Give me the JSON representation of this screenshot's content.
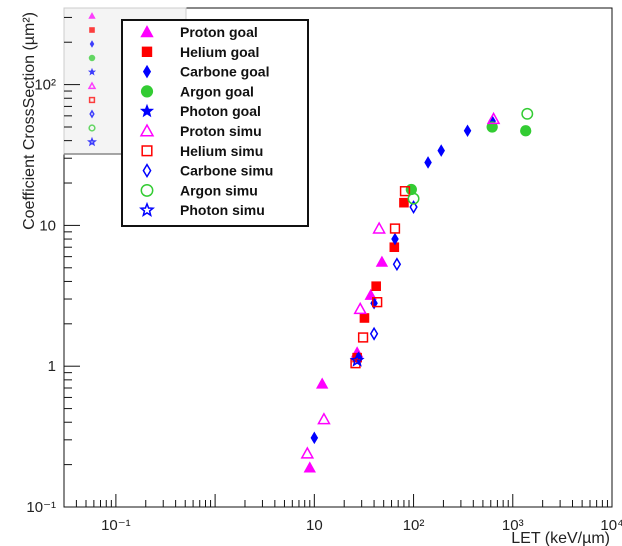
{
  "chart_data": {
    "type": "scatter",
    "title": "",
    "xlabel": "LET (keV/µm)",
    "ylabel": "Coefficient CrossSection (µm²)",
    "xscale": "log",
    "yscale": "log",
    "xlim": [
      0.03,
      10000
    ],
    "ylim": [
      0.1,
      350
    ],
    "grid": false,
    "legend_position": "top-left",
    "x_ticks": [
      {
        "value": 0.1,
        "label": "10⁻¹"
      },
      {
        "value": 10,
        "label": "10"
      },
      {
        "value": 100,
        "label": "10²"
      },
      {
        "value": 1000,
        "label": "10³"
      },
      {
        "value": 10000,
        "label": "10⁴"
      }
    ],
    "y_ticks": [
      {
        "value": 0.1,
        "label": "10⁻¹"
      },
      {
        "value": 1,
        "label": "1"
      },
      {
        "value": 10,
        "label": "10"
      },
      {
        "value": 100,
        "label": "10²"
      }
    ],
    "series": [
      {
        "name": "Proton goal",
        "marker": "triangle",
        "filled": true,
        "color": "#ff00ff",
        "x": [
          9.0,
          12.0,
          27.0,
          37.0,
          48.0
        ],
        "y": [
          0.19,
          0.75,
          1.25,
          3.2,
          5.5
        ]
      },
      {
        "name": "Helium goal",
        "marker": "square",
        "filled": true,
        "color": "#ff0000",
        "x": [
          27.0,
          32.0,
          42.0,
          64.0,
          80.0
        ],
        "y": [
          1.15,
          2.2,
          3.7,
          7.0,
          14.5
        ]
      },
      {
        "name": "Carbone goal",
        "marker": "diamond",
        "filled": true,
        "color": "#0000ff",
        "x": [
          10.0,
          28.0,
          40.0,
          65.0,
          140.0,
          190.0,
          350.0,
          620.0
        ],
        "y": [
          0.31,
          1.15,
          2.8,
          8.0,
          28.0,
          34.0,
          47.0,
          55.0
        ]
      },
      {
        "name": "Argon goal",
        "marker": "circle",
        "filled": true,
        "color": "#33cc33",
        "x": [
          95.0,
          620.0,
          1350.0
        ],
        "y": [
          18.0,
          50.0,
          47.0
        ]
      },
      {
        "name": "Photon goal",
        "marker": "star",
        "filled": true,
        "color": "#0000ff",
        "x": [],
        "y": []
      },
      {
        "name": "Proton simu",
        "marker": "triangle",
        "filled": false,
        "color": "#ff00ff",
        "x": [
          8.5,
          12.5,
          29.0,
          45.0,
          640.0
        ],
        "y": [
          0.24,
          0.42,
          2.55,
          9.5,
          57.0
        ]
      },
      {
        "name": "Helium simu",
        "marker": "square",
        "filled": false,
        "color": "#ff0000",
        "x": [
          26.0,
          31.0,
          43.0,
          65.0,
          82.0
        ],
        "y": [
          1.05,
          1.6,
          2.85,
          9.5,
          17.5
        ]
      },
      {
        "name": "Carbone simu",
        "marker": "diamond",
        "filled": false,
        "color": "#0000ff",
        "x": [
          40.0,
          68.0,
          100.0
        ],
        "y": [
          1.7,
          5.3,
          13.5
        ]
      },
      {
        "name": "Argon simu",
        "marker": "circle",
        "filled": false,
        "color": "#33cc33",
        "x": [
          100.0,
          1400.0
        ],
        "y": [
          15.5,
          62.0
        ]
      },
      {
        "name": "Photon simu",
        "marker": "star",
        "filled": false,
        "color": "#0000ff",
        "x": [
          27.0
        ],
        "y": [
          1.1
        ]
      }
    ]
  }
}
